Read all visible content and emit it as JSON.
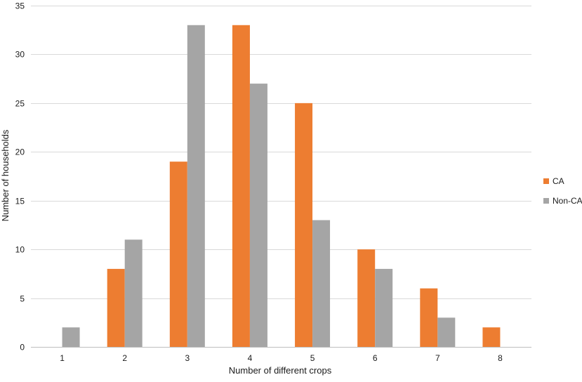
{
  "chart_data": {
    "type": "bar",
    "title": "",
    "xlabel": "Number of different crops",
    "ylabel": "Number of households",
    "categories": [
      "1",
      "2",
      "3",
      "4",
      "5",
      "6",
      "7",
      "8"
    ],
    "series": [
      {
        "name": "CA",
        "values": [
          0,
          8,
          19,
          33,
          25,
          10,
          6,
          2
        ]
      },
      {
        "name": "Non-CA",
        "values": [
          2,
          11,
          33,
          27,
          13,
          8,
          3,
          0
        ]
      }
    ],
    "ylim": [
      0,
      35
    ],
    "yticks": [
      0,
      5,
      10,
      15,
      20,
      25,
      30,
      35
    ],
    "grid": true,
    "legend_position": "right",
    "colors": {
      "CA": "#ED7D31",
      "Non-CA": "#A5A5A5",
      "grid": "#D9D9D9",
      "axis": "#BFBFBF"
    }
  }
}
